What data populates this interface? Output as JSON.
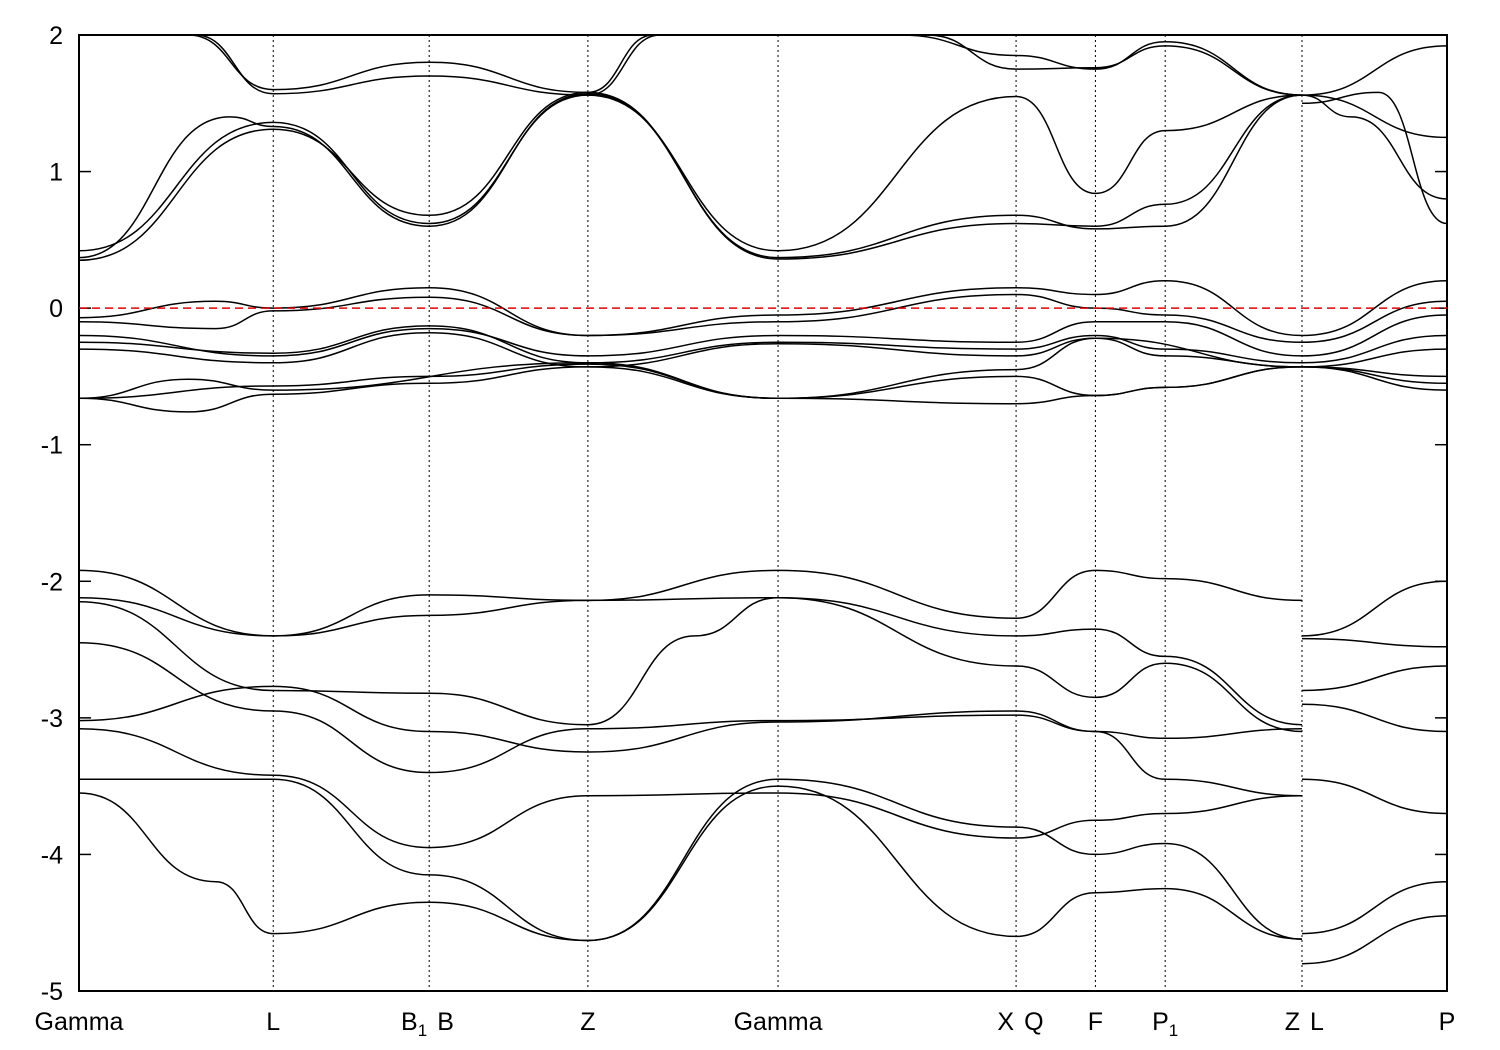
{
  "chart_data": {
    "type": "line",
    "title": "",
    "xlabel": "",
    "ylabel": "",
    "ylim": [
      -5,
      2
    ],
    "yticks": [
      2,
      1,
      0,
      -1,
      -2,
      -3,
      -4,
      -5
    ],
    "ytick_labels": [
      "2",
      "1",
      "0",
      "-1",
      "-2",
      "-3",
      "-4",
      "-5"
    ],
    "xlim": [
      0,
      10
    ],
    "grid": false,
    "fermi_level": 0,
    "fermi_color": "#e00000",
    "band_color": "#000000",
    "high_symmetry_points": [
      {
        "x": 0.0,
        "label": "Gamma",
        "sub": ""
      },
      {
        "x": 1.42,
        "label": "L",
        "sub": ""
      },
      {
        "x": 2.56,
        "label": "B",
        "sub": "1"
      },
      {
        "x": 2.56,
        "label": "B",
        "sub": ""
      },
      {
        "x": 3.72,
        "label": "Z",
        "sub": ""
      },
      {
        "x": 5.11,
        "label": "Gamma",
        "sub": ""
      },
      {
        "x": 6.85,
        "label": "X",
        "sub": ""
      },
      {
        "x": 6.85,
        "label": "Q",
        "sub": ""
      },
      {
        "x": 7.43,
        "label": "F",
        "sub": ""
      },
      {
        "x": 7.94,
        "label": "P",
        "sub": "1"
      },
      {
        "x": 8.94,
        "label": "Z",
        "sub": ""
      },
      {
        "x": 8.94,
        "label": "L",
        "sub": ""
      },
      {
        "x": 10.0,
        "label": "P",
        "sub": ""
      }
    ],
    "series": [
      {
        "x": [
          0,
          1.42,
          2.56,
          3.72,
          5.11,
          6.85,
          7.43,
          7.94,
          8.94
        ],
        "y": [
          0.42,
          1.36,
          0.62,
          1.56,
          0.42,
          1.55,
          0.84,
          1.3,
          1.56
        ]
      },
      {
        "x": [
          0,
          1.42,
          2.56,
          3.72,
          5.11,
          6.85,
          7.43,
          7.94,
          8.94
        ],
        "y": [
          0.35,
          1.31,
          0.68,
          1.58,
          0.36,
          0.62,
          0.6,
          0.76,
          1.56
        ]
      },
      {
        "x": [
          0,
          1.1,
          1.42,
          2.56,
          3.72,
          5.11,
          6.85,
          7.43,
          7.94,
          8.94
        ],
        "y": [
          0.37,
          1.4,
          1.33,
          0.6,
          1.57,
          0.37,
          0.68,
          0.58,
          0.6,
          1.56
        ]
      },
      {
        "x": [
          0.8,
          1.42,
          2.56,
          3.72,
          4.2
        ],
        "y": [
          2.0,
          1.6,
          1.8,
          1.58,
          2.0
        ]
      },
      {
        "x": [
          0.85,
          1.42,
          2.56,
          3.72,
          4.25
        ],
        "y": [
          2.0,
          1.57,
          1.7,
          1.56,
          2.0
        ]
      },
      {
        "x": [
          6.0,
          6.85,
          7.43,
          7.94,
          8.94,
          10.0
        ],
        "y": [
          2.0,
          1.85,
          1.75,
          1.95,
          1.56,
          1.92
        ]
      },
      {
        "x": [
          6.2,
          6.85,
          7.43,
          7.94,
          8.94,
          10.0
        ],
        "y": [
          2.0,
          1.75,
          1.76,
          1.92,
          1.56,
          1.25
        ]
      },
      {
        "x": [
          8.94,
          9.3,
          10.0
        ],
        "y": [
          1.56,
          1.4,
          0.8
        ]
      },
      {
        "x": [
          8.94,
          9.5,
          10.0
        ],
        "y": [
          1.5,
          1.58,
          0.62
        ]
      },
      {
        "x": [
          0,
          1.0,
          1.42,
          2.56,
          3.72,
          5.11,
          6.85,
          7.43,
          7.94,
          8.94,
          10.0
        ],
        "y": [
          -0.07,
          0.05,
          0.0,
          0.15,
          -0.2,
          -0.05,
          0.15,
          0.1,
          0.2,
          -0.2,
          0.2
        ]
      },
      {
        "x": [
          0,
          1.0,
          1.42,
          2.56,
          3.72,
          5.11,
          6.85,
          7.43,
          7.94,
          8.94,
          10.0
        ],
        "y": [
          -0.1,
          -0.15,
          -0.02,
          0.08,
          -0.2,
          -0.1,
          0.1,
          0.0,
          -0.05,
          -0.25,
          0.05
        ]
      },
      {
        "x": [
          0,
          1.42,
          2.56,
          3.72,
          5.11,
          6.85,
          7.43,
          7.94,
          8.94,
          10.0
        ],
        "y": [
          -0.2,
          -0.35,
          -0.15,
          -0.35,
          -0.2,
          -0.25,
          -0.1,
          -0.1,
          -0.35,
          -0.05
        ]
      },
      {
        "x": [
          0,
          1.42,
          2.56,
          3.72,
          5.11,
          6.85,
          7.43,
          7.94,
          8.94,
          10.0
        ],
        "y": [
          -0.25,
          -0.33,
          -0.13,
          -0.4,
          -0.25,
          -0.3,
          -0.2,
          -0.3,
          -0.4,
          -0.2
        ]
      },
      {
        "x": [
          0,
          1.42,
          2.56,
          3.72,
          5.11,
          6.85,
          7.43,
          7.94,
          8.94,
          10.0
        ],
        "y": [
          -0.3,
          -0.4,
          -0.18,
          -0.43,
          -0.26,
          -0.35,
          -0.22,
          -0.35,
          -0.43,
          -0.3
        ]
      },
      {
        "x": [
          0,
          1.42,
          2.56,
          3.72,
          5.11,
          6.85,
          7.43,
          7.94,
          8.94,
          10.0
        ],
        "y": [
          -0.66,
          -0.57,
          -0.5,
          -0.41,
          -0.66,
          -0.5,
          -0.64,
          -0.58,
          -0.43,
          -0.55
        ]
      },
      {
        "x": [
          0,
          0.8,
          1.42,
          2.56,
          3.72,
          5.11,
          6.85,
          7.43,
          7.94,
          8.94,
          10.0
        ],
        "y": [
          -0.66,
          -0.76,
          -0.63,
          -0.55,
          -0.43,
          -0.66,
          -0.7,
          -0.64,
          -0.58,
          -0.43,
          -0.6
        ]
      },
      {
        "x": [
          0,
          0.8,
          1.42,
          3.72,
          5.11,
          6.85,
          7.43,
          8.94,
          10.0
        ],
        "y": [
          -0.66,
          -0.52,
          -0.6,
          -0.4,
          -0.66,
          -0.45,
          -0.22,
          -0.43,
          -0.5
        ]
      },
      {
        "x": [
          0,
          1.42,
          2.56,
          3.72,
          5.11,
          6.85,
          7.43,
          7.94,
          8.94
        ],
        "y": [
          -1.92,
          -2.4,
          -2.25,
          -2.14,
          -1.92,
          -2.27,
          -1.92,
          -1.98,
          -2.14
        ]
      },
      {
        "x": [
          0,
          1.42,
          2.56,
          3.72,
          5.11,
          6.85,
          7.43,
          7.94,
          8.94
        ],
        "y": [
          -2.12,
          -2.4,
          -2.1,
          -2.14,
          -2.12,
          -2.4,
          -2.35,
          -2.55,
          -3.05
        ]
      },
      {
        "x": [
          0,
          1.42,
          2.56,
          3.72,
          4.5,
          5.11,
          6.85,
          7.43,
          7.94,
          8.94
        ],
        "y": [
          -2.15,
          -2.8,
          -2.82,
          -3.05,
          -2.4,
          -2.12,
          -2.62,
          -2.85,
          -2.6,
          -3.1
        ]
      },
      {
        "x": [
          0,
          1.42,
          2.56,
          3.72,
          5.11,
          6.85,
          7.43,
          7.94,
          8.94
        ],
        "y": [
          -2.45,
          -2.95,
          -3.4,
          -3.08,
          -3.02,
          -2.98,
          -3.1,
          -3.15,
          -3.08
        ]
      },
      {
        "x": [
          0,
          1.42,
          2.56,
          3.72,
          5.11,
          6.85,
          7.43,
          7.94,
          8.94
        ],
        "y": [
          -3.02,
          -2.77,
          -3.1,
          -3.25,
          -3.03,
          -2.95,
          -3.1,
          -3.45,
          -3.57
        ]
      },
      {
        "x": [
          0,
          1.42,
          2.56,
          3.72,
          5.11,
          6.85,
          7.43,
          7.94,
          8.94
        ],
        "y": [
          -3.08,
          -3.42,
          -3.95,
          -3.57,
          -3.55,
          -3.88,
          -3.75,
          -3.7,
          -3.57
        ]
      },
      {
        "x": [
          0,
          1.42,
          2.56,
          3.72,
          5.11,
          6.85,
          7.43,
          7.94,
          8.94
        ],
        "y": [
          -3.45,
          -3.45,
          -4.15,
          -4.63,
          -3.45,
          -3.8,
          -4.0,
          -3.92,
          -4.62
        ]
      },
      {
        "x": [
          0,
          1.0,
          1.42,
          2.56,
          3.72,
          5.11,
          6.85,
          7.43,
          7.94,
          8.94
        ],
        "y": [
          -3.55,
          -4.2,
          -4.58,
          -4.35,
          -4.63,
          -3.5,
          -4.6,
          -4.28,
          -4.25,
          -4.62
        ]
      },
      {
        "x": [
          8.94,
          10.0
        ],
        "y": [
          -2.4,
          -2.0
        ]
      },
      {
        "x": [
          8.94,
          10.0
        ],
        "y": [
          -2.42,
          -2.48
        ]
      },
      {
        "x": [
          8.94,
          10.0
        ],
        "y": [
          -2.8,
          -2.62
        ]
      },
      {
        "x": [
          8.94,
          10.0
        ],
        "y": [
          -2.9,
          -3.1
        ]
      },
      {
        "x": [
          8.94,
          10.0
        ],
        "y": [
          -3.45,
          -3.7
        ]
      },
      {
        "x": [
          8.94,
          10.0
        ],
        "y": [
          -4.58,
          -4.2
        ]
      },
      {
        "x": [
          8.94,
          10.0
        ],
        "y": [
          -4.8,
          -4.45
        ]
      }
    ]
  }
}
